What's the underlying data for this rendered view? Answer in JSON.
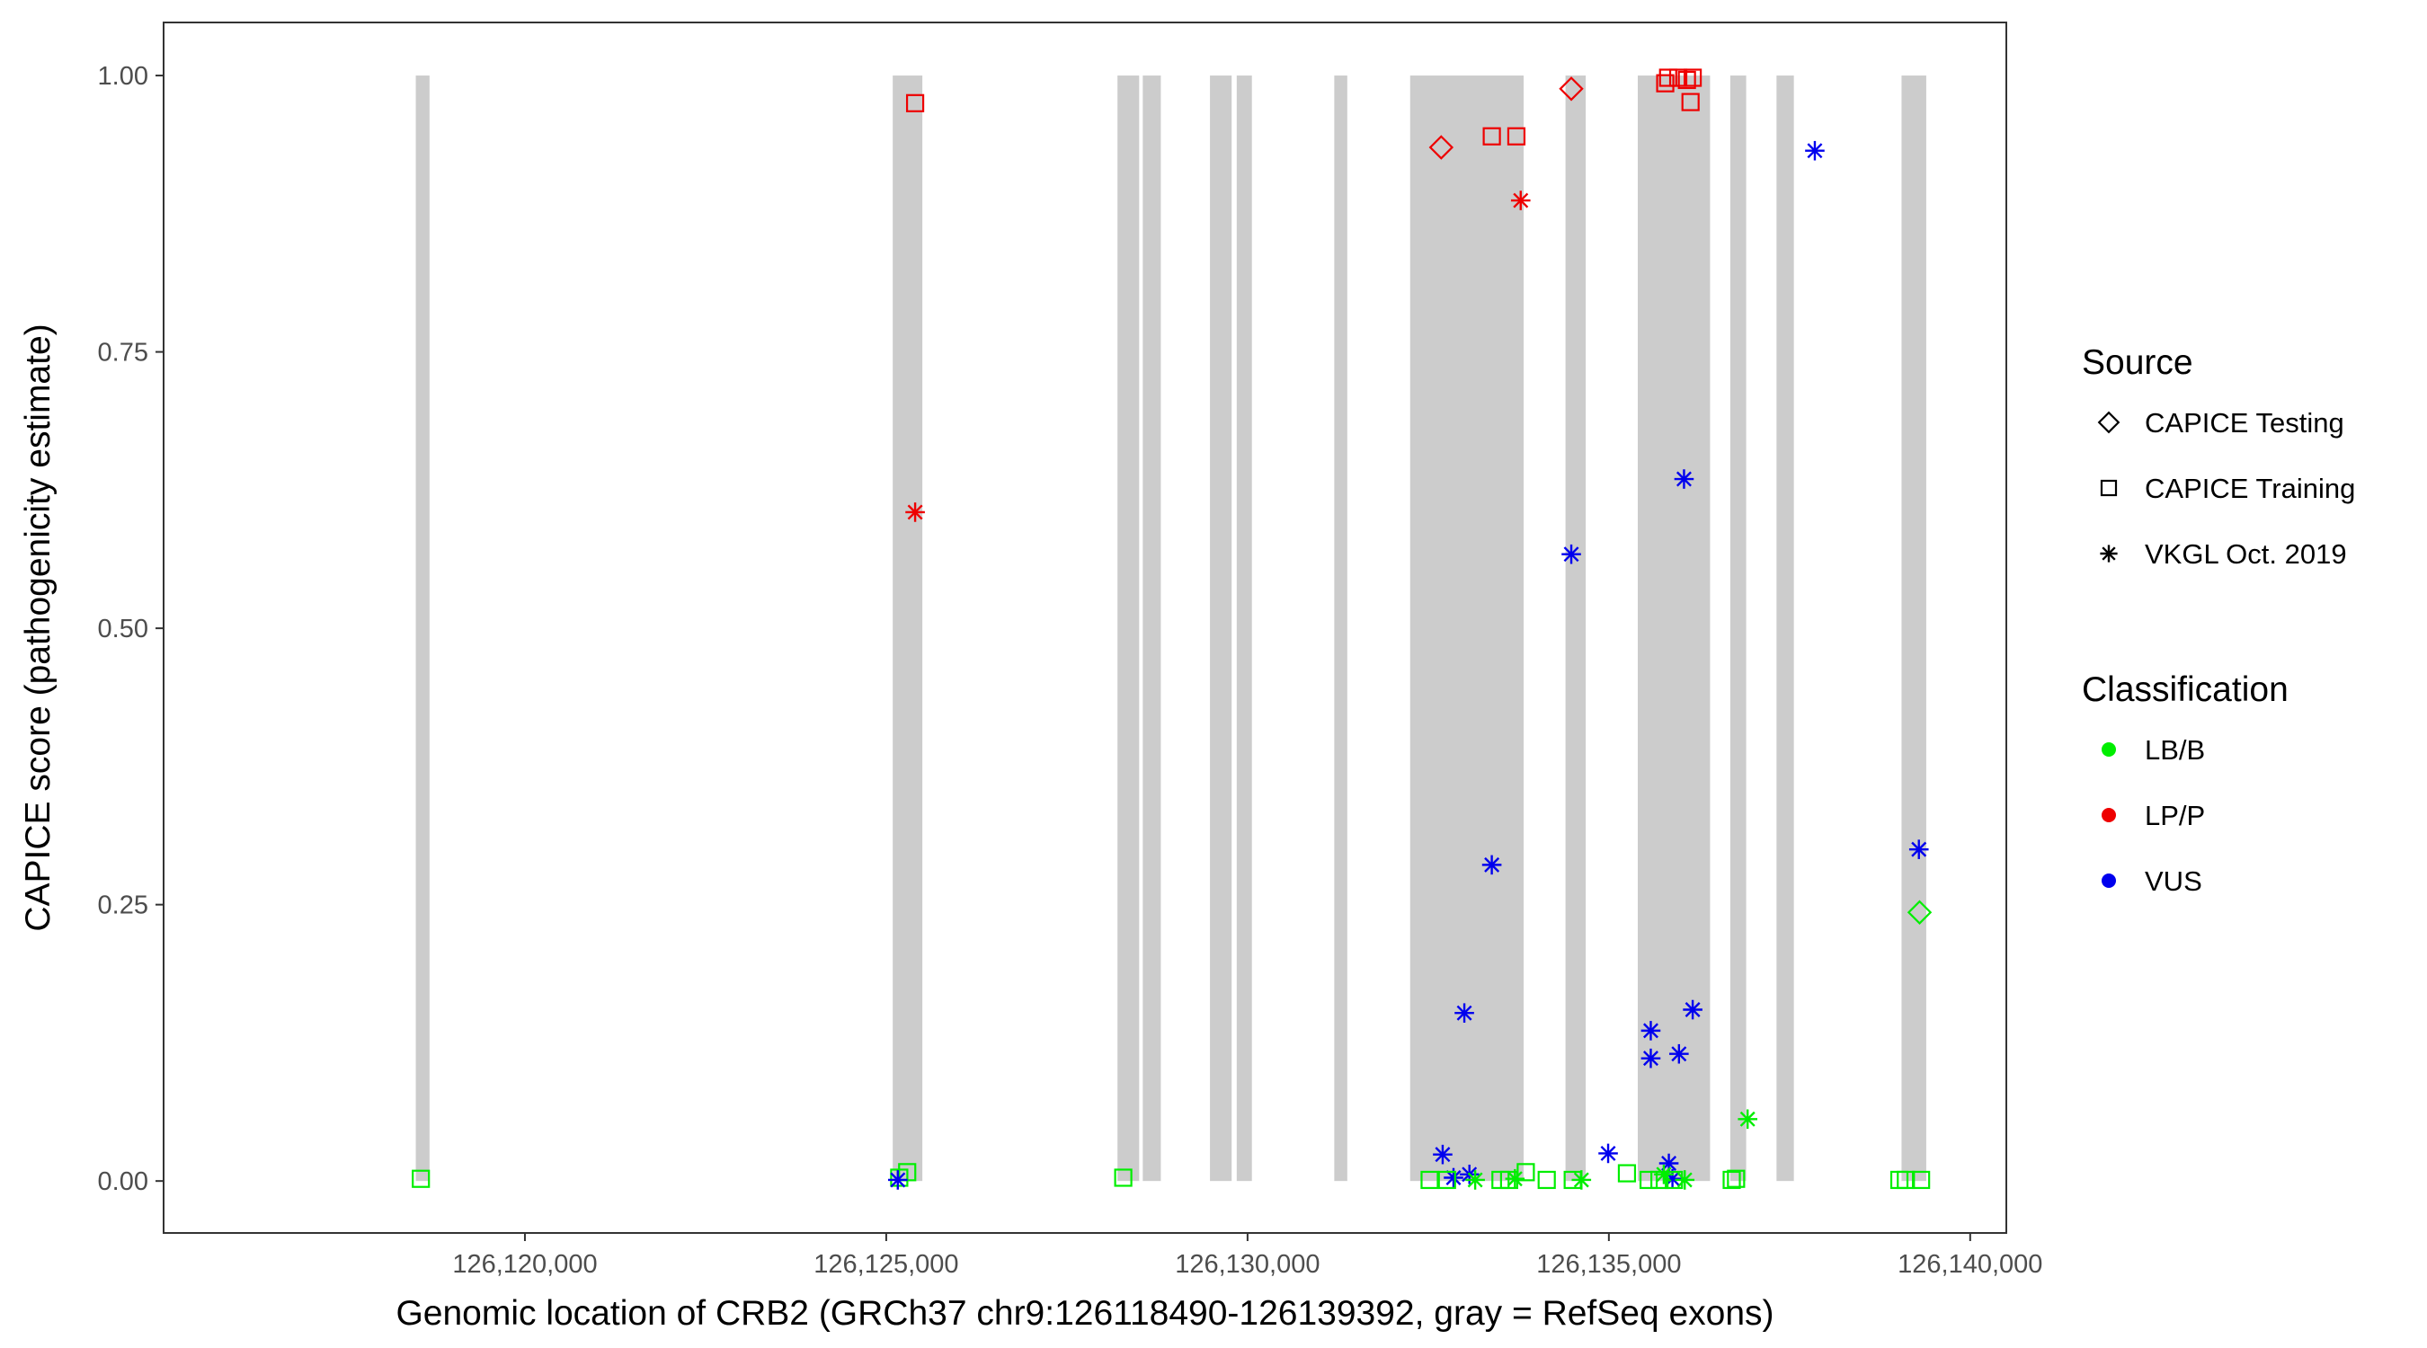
{
  "chart_data": {
    "type": "scatter",
    "title": "",
    "xlabel": "Genomic location of CRB2 (GRCh37 chr9:126118490-126139392, gray = RefSeq exons)",
    "ylabel": "CAPICE score (pathogenicity estimate)",
    "xlim": [
      126115000,
      126140500
    ],
    "ylim": [
      -0.047,
      1.048
    ],
    "x_ticks": [
      126120000,
      126125000,
      126130000,
      126135000,
      126140000
    ],
    "x_tick_labels": [
      "126,120,000",
      "126,125,000",
      "126,130,000",
      "126,135,000",
      "126,140,000"
    ],
    "y_ticks": [
      0,
      0.25,
      0.5,
      0.75,
      1
    ],
    "y_tick_labels": [
      "0.00",
      "0.25",
      "0.50",
      "0.75",
      "1.00"
    ],
    "grid": false,
    "exon_band_color": "#cccccc",
    "exons": [
      [
        126118490,
        126118680
      ],
      [
        126125090,
        126125500
      ],
      [
        126128200,
        126128500
      ],
      [
        126128550,
        126128800
      ],
      [
        126129480,
        126129780
      ],
      [
        126129850,
        126130060
      ],
      [
        126131200,
        126131380
      ],
      [
        126132250,
        126133820
      ],
      [
        126134400,
        126134680
      ],
      [
        126135400,
        126136400
      ],
      [
        126136680,
        126136900
      ],
      [
        126137320,
        126137560
      ],
      [
        126139050,
        126139392
      ]
    ],
    "legend": {
      "position": "right",
      "source_title": "Source",
      "source_entries": [
        {
          "label": "CAPICE Testing",
          "shape": "diamond"
        },
        {
          "label": "CAPICE Training",
          "shape": "square"
        },
        {
          "label": "VKGL Oct. 2019",
          "shape": "asterisk"
        }
      ],
      "class_title": "Classification",
      "class_entries": [
        {
          "label": "LB/B",
          "color": "#00ee00"
        },
        {
          "label": "LP/P",
          "color": "#ee0000"
        },
        {
          "label": "VUS",
          "color": "#0000ee"
        }
      ]
    },
    "points": [
      {
        "x": 126118560,
        "y": 0.002,
        "source": "CAPICE Training",
        "class": "LB/B"
      },
      {
        "x": 126125180,
        "y": 0.003,
        "source": "CAPICE Training",
        "class": "LB/B"
      },
      {
        "x": 126125290,
        "y": 0.008,
        "source": "CAPICE Training",
        "class": "LB/B"
      },
      {
        "x": 126125400,
        "y": 0.975,
        "source": "CAPICE Training",
        "class": "LP/P"
      },
      {
        "x": 126125400,
        "y": 0.605,
        "source": "VKGL Oct. 2019",
        "class": "LP/P"
      },
      {
        "x": 126125160,
        "y": 0.001,
        "source": "VKGL Oct. 2019",
        "class": "VUS"
      },
      {
        "x": 126128280,
        "y": 0.003,
        "source": "CAPICE Training",
        "class": "LB/B"
      },
      {
        "x": 126132680,
        "y": 0.935,
        "source": "CAPICE Testing",
        "class": "LP/P"
      },
      {
        "x": 126133380,
        "y": 0.945,
        "source": "CAPICE Training",
        "class": "LP/P"
      },
      {
        "x": 126133720,
        "y": 0.945,
        "source": "CAPICE Training",
        "class": "LP/P"
      },
      {
        "x": 126133780,
        "y": 0.887,
        "source": "VKGL Oct. 2019",
        "class": "LP/P"
      },
      {
        "x": 126134480,
        "y": 0.988,
        "source": "CAPICE Testing",
        "class": "LP/P"
      },
      {
        "x": 126135780,
        "y": 0.993,
        "source": "CAPICE Training",
        "class": "LP/P"
      },
      {
        "x": 126135820,
        "y": 0.998,
        "source": "CAPICE Training",
        "class": "LP/P"
      },
      {
        "x": 126135960,
        "y": 0.998,
        "source": "CAPICE Training",
        "class": "LP/P"
      },
      {
        "x": 126136080,
        "y": 0.996,
        "source": "CAPICE Training",
        "class": "LP/P"
      },
      {
        "x": 126136160,
        "y": 0.998,
        "source": "CAPICE Training",
        "class": "LP/P"
      },
      {
        "x": 126136130,
        "y": 0.976,
        "source": "CAPICE Training",
        "class": "LP/P"
      },
      {
        "x": 126137850,
        "y": 0.932,
        "source": "VKGL Oct. 2019",
        "class": "VUS"
      },
      {
        "x": 126136040,
        "y": 0.635,
        "source": "VKGL Oct. 2019",
        "class": "VUS"
      },
      {
        "x": 126134480,
        "y": 0.567,
        "source": "VKGL Oct. 2019",
        "class": "VUS"
      },
      {
        "x": 126133380,
        "y": 0.286,
        "source": "VKGL Oct. 2019",
        "class": "VUS"
      },
      {
        "x": 126133000,
        "y": 0.152,
        "source": "VKGL Oct. 2019",
        "class": "VUS"
      },
      {
        "x": 126135580,
        "y": 0.136,
        "source": "VKGL Oct. 2019",
        "class": "VUS"
      },
      {
        "x": 126136160,
        "y": 0.155,
        "source": "VKGL Oct. 2019",
        "class": "VUS"
      },
      {
        "x": 126135580,
        "y": 0.111,
        "source": "VKGL Oct. 2019",
        "class": "VUS"
      },
      {
        "x": 126135970,
        "y": 0.115,
        "source": "VKGL Oct. 2019",
        "class": "VUS"
      },
      {
        "x": 126139290,
        "y": 0.3,
        "source": "VKGL Oct. 2019",
        "class": "VUS"
      },
      {
        "x": 126139300,
        "y": 0.243,
        "source": "CAPICE Testing",
        "class": "LB/B"
      },
      {
        "x": 126136920,
        "y": 0.056,
        "source": "VKGL Oct. 2019",
        "class": "LB/B"
      },
      {
        "x": 126132700,
        "y": 0.024,
        "source": "VKGL Oct. 2019",
        "class": "VUS"
      },
      {
        "x": 126132850,
        "y": 0.003,
        "source": "VKGL Oct. 2019",
        "class": "VUS"
      },
      {
        "x": 126133070,
        "y": 0.006,
        "source": "VKGL Oct. 2019",
        "class": "VUS"
      },
      {
        "x": 126134990,
        "y": 0.025,
        "source": "VKGL Oct. 2019",
        "class": "VUS"
      },
      {
        "x": 126135830,
        "y": 0.016,
        "source": "VKGL Oct. 2019",
        "class": "VUS"
      },
      {
        "x": 126135880,
        "y": 0.002,
        "source": "VKGL Oct. 2019",
        "class": "VUS"
      },
      {
        "x": 126132520,
        "y": 0.001,
        "source": "CAPICE Training",
        "class": "LB/B"
      },
      {
        "x": 126132760,
        "y": 0.001,
        "source": "CAPICE Training",
        "class": "LB/B"
      },
      {
        "x": 126133150,
        "y": 0.001,
        "source": "VKGL Oct. 2019",
        "class": "LB/B"
      },
      {
        "x": 126133500,
        "y": 0.001,
        "source": "CAPICE Training",
        "class": "LB/B"
      },
      {
        "x": 126133620,
        "y": 0.001,
        "source": "CAPICE Training",
        "class": "LB/B"
      },
      {
        "x": 126133700,
        "y": 0.002,
        "source": "VKGL Oct. 2019",
        "class": "LB/B"
      },
      {
        "x": 126133850,
        "y": 0.008,
        "source": "CAPICE Training",
        "class": "LB/B"
      },
      {
        "x": 126134140,
        "y": 0.001,
        "source": "CAPICE Training",
        "class": "LB/B"
      },
      {
        "x": 126134500,
        "y": 0.001,
        "source": "CAPICE Training",
        "class": "LB/B"
      },
      {
        "x": 126134620,
        "y": 0.001,
        "source": "VKGL Oct. 2019",
        "class": "LB/B"
      },
      {
        "x": 126135250,
        "y": 0.007,
        "source": "CAPICE Training",
        "class": "LB/B"
      },
      {
        "x": 126135550,
        "y": 0.001,
        "source": "CAPICE Training",
        "class": "LB/B"
      },
      {
        "x": 126135700,
        "y": 0.001,
        "source": "CAPICE Training",
        "class": "LB/B"
      },
      {
        "x": 126135760,
        "y": 0.006,
        "source": "VKGL Oct. 2019",
        "class": "LB/B"
      },
      {
        "x": 126135900,
        "y": 0.001,
        "source": "CAPICE Training",
        "class": "LB/B"
      },
      {
        "x": 126136050,
        "y": 0.001,
        "source": "VKGL Oct. 2019",
        "class": "LB/B"
      },
      {
        "x": 126136700,
        "y": 0.001,
        "source": "CAPICE Training",
        "class": "LB/B"
      },
      {
        "x": 126136760,
        "y": 0.002,
        "source": "CAPICE Training",
        "class": "LB/B"
      },
      {
        "x": 126139020,
        "y": 0.001,
        "source": "CAPICE Training",
        "class": "LB/B"
      },
      {
        "x": 126139110,
        "y": 0.001,
        "source": "CAPICE Training",
        "class": "LB/B"
      },
      {
        "x": 126139320,
        "y": 0.001,
        "source": "CAPICE Training",
        "class": "LB/B"
      }
    ]
  }
}
